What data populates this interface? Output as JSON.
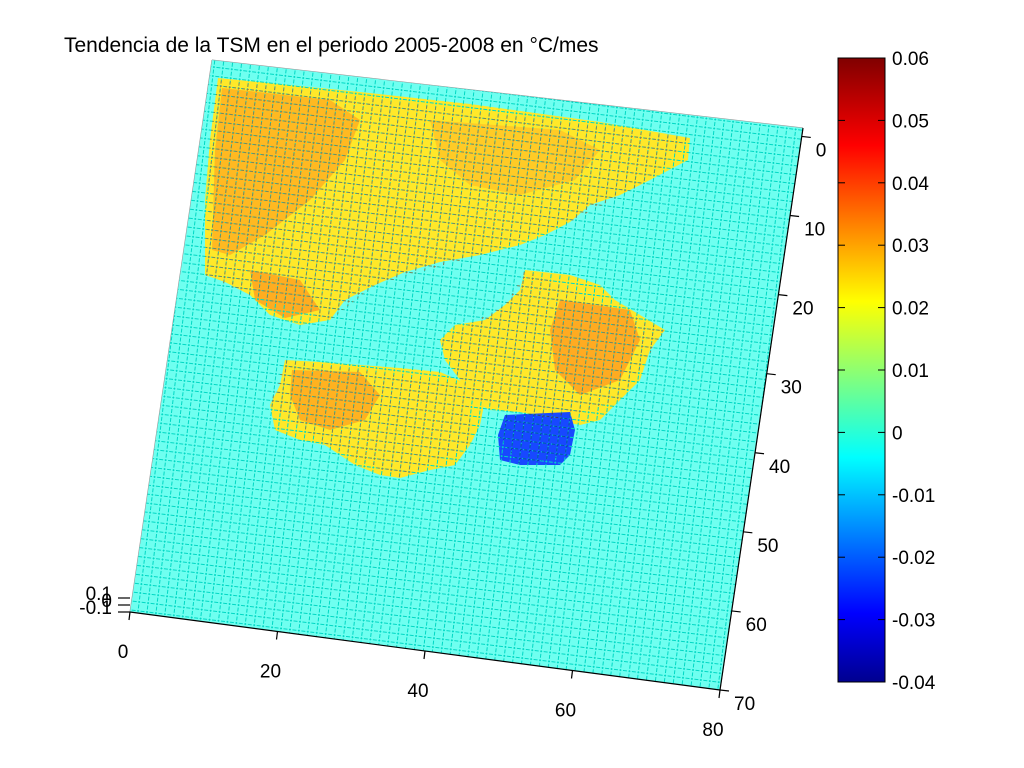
{
  "chart_data": {
    "type": "heatmap",
    "title": "Tendencia de la TSM en el periodo 2005-2008 en °C/mes",
    "x_axis": {
      "ticks": [
        "0",
        "20",
        "40",
        "60",
        "80"
      ],
      "range": [
        0,
        80
      ]
    },
    "y_axis": {
      "ticks": [
        "0",
        "10",
        "20",
        "30",
        "40",
        "50",
        "60",
        "70"
      ],
      "range": [
        0,
        70
      ]
    },
    "z_axis": {
      "ticks": [
        "0.1",
        "0",
        "-0.1"
      ],
      "range": [
        -0.1,
        0.1
      ]
    },
    "colorbar": {
      "ticks": [
        "0.06",
        "0.05",
        "0.04",
        "0.03",
        "0.02",
        "0.01",
        "0",
        "-0.01",
        "-0.02",
        "-0.03",
        "-0.04"
      ],
      "range": [
        -0.04,
        0.06
      ],
      "colormap": "jet",
      "location": "right"
    },
    "background_value": 0,
    "regions": [
      {
        "label": "",
        "value": 0.022
      },
      {
        "label": "",
        "value": 0.024
      },
      {
        "label": "",
        "value": 0.018
      },
      {
        "label": "",
        "value": 0.021
      },
      {
        "label": "",
        "value": 0.023
      },
      {
        "label": "",
        "value": -0.032
      }
    ],
    "grid": false,
    "legend": "none"
  },
  "colors": {
    "axis": "#000000",
    "background_surface": "#33ffe0",
    "mesh_edge": "#00e5cc"
  }
}
